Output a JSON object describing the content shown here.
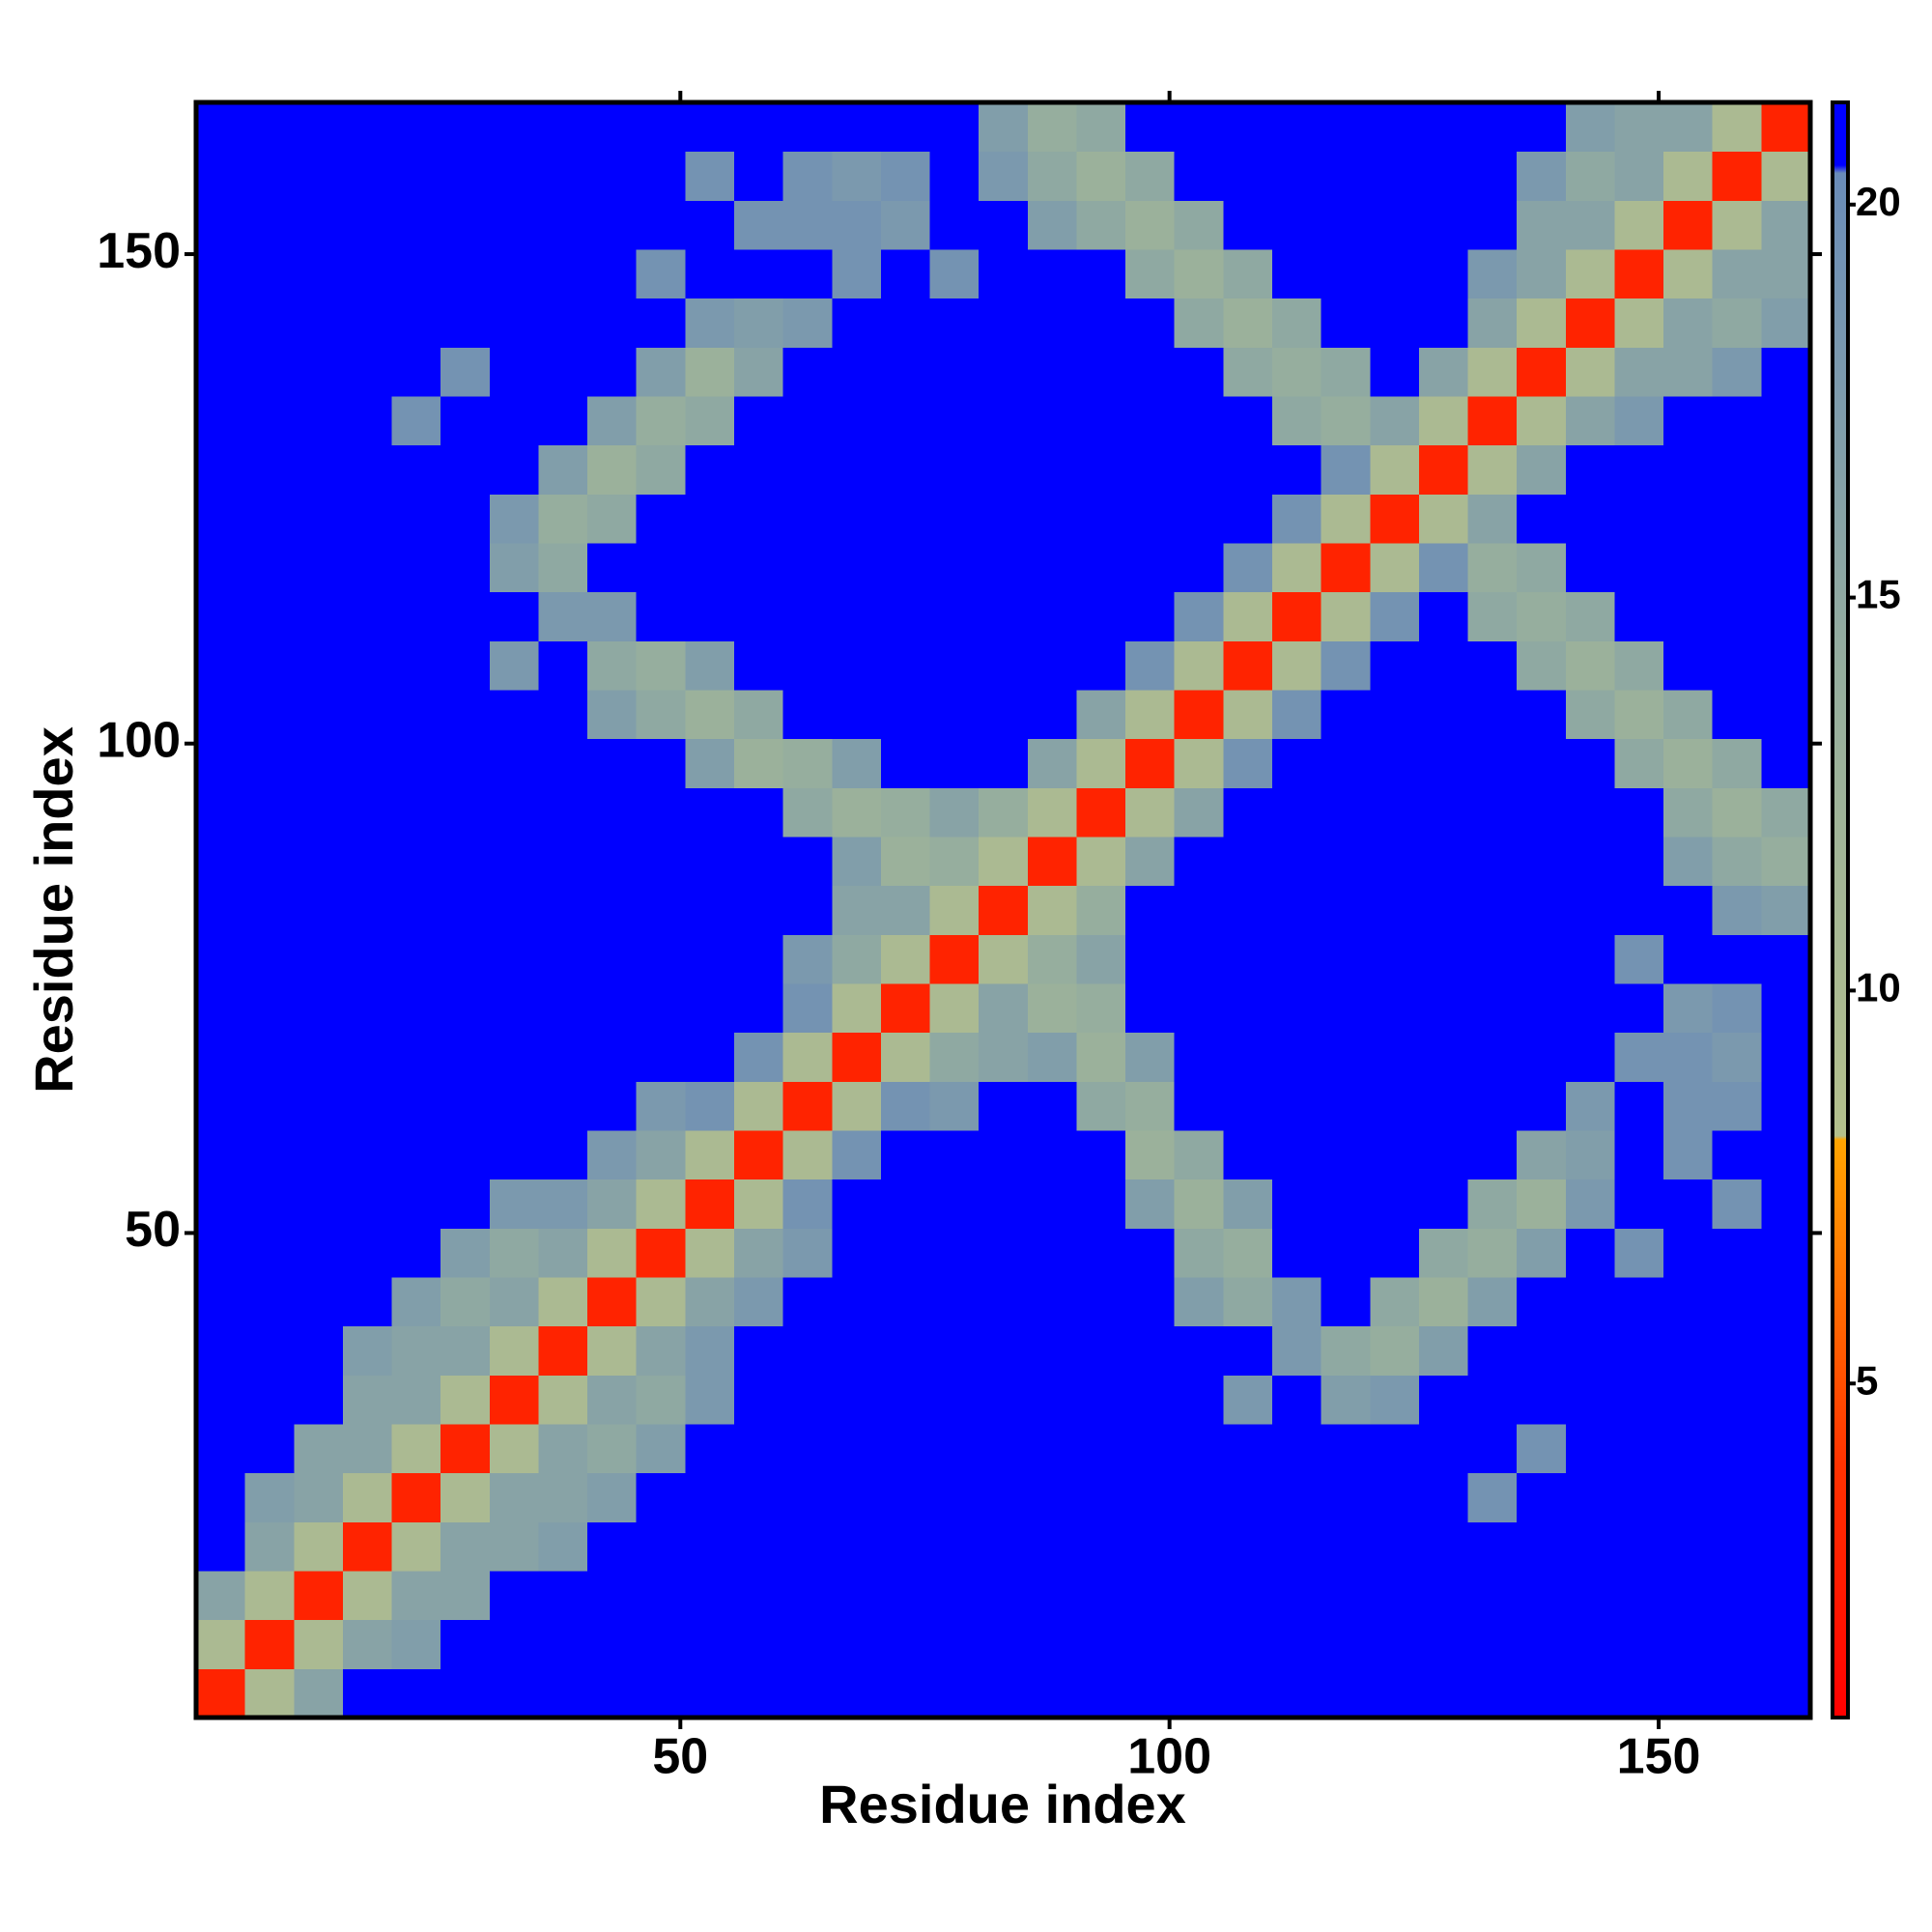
{
  "chart_data": {
    "type": "heatmap",
    "xlabel": "Residue index",
    "ylabel": "Residue index",
    "xlim": [
      0.5,
      165.5
    ],
    "ylim": [
      0.5,
      165.5
    ],
    "xticks": [
      50,
      100,
      150
    ],
    "yticks": [
      50,
      100,
      150
    ],
    "xbins": [
      0.5,
      5.5,
      10.5,
      15.5,
      20.5,
      25.5,
      30.5,
      35.5,
      40.5,
      45.5,
      50.5,
      55.5,
      60.5,
      65.5,
      70.5,
      75.5,
      80.5,
      85.5,
      90.5,
      95.5,
      100.5,
      105.5,
      110.5,
      115.5,
      120.5,
      125.5,
      130.5,
      135.5,
      140.5,
      145.5,
      150.5,
      155.5,
      160.5,
      165.5
    ],
    "ybins": [
      0.5,
      5.5,
      10.5,
      15.5,
      20.5,
      25.5,
      30.5,
      35.5,
      40.5,
      45.5,
      50.5,
      55.5,
      60.5,
      65.5,
      70.5,
      75.5,
      80.5,
      85.5,
      90.5,
      95.5,
      100.5,
      105.5,
      110.5,
      115.5,
      120.5,
      125.5,
      130.5,
      135.5,
      140.5,
      145.5,
      150.5,
      155.5,
      160.5,
      165.5
    ],
    "clim": [
      0.75,
      21.3
    ],
    "cticks": [
      5,
      10,
      15,
      20
    ],
    "colorscale": [
      {
        "value": 0.75,
        "color": "#ff0000"
      },
      {
        "value": 4,
        "color": "#ff3300"
      },
      {
        "value": 8.1,
        "color": "#ffa500"
      },
      {
        "value": 8.15,
        "color": "#b4c08c"
      },
      {
        "value": 14,
        "color": "#96ae9e"
      },
      {
        "value": 20.4,
        "color": "#6a8cb8"
      },
      {
        "value": 20.5,
        "color": "#0000ff"
      },
      {
        "value": 21.3,
        "color": "#0000ff"
      }
    ],
    "values": [
      [
        3,
        10,
        16,
        22,
        22,
        22,
        22,
        22,
        22,
        22,
        22,
        22,
        22,
        22,
        22,
        22,
        22,
        22,
        22,
        22,
        22,
        22,
        22,
        22,
        22,
        22,
        22,
        22,
        22,
        22,
        22,
        22,
        22
      ],
      [
        10,
        3,
        10,
        16,
        17,
        22,
        22,
        22,
        22,
        22,
        22,
        22,
        22,
        22,
        22,
        22,
        22,
        22,
        22,
        22,
        22,
        22,
        22,
        22,
        22,
        22,
        22,
        22,
        22,
        22,
        22,
        22,
        22
      ],
      [
        16,
        10,
        3,
        10,
        16,
        16,
        22,
        22,
        22,
        22,
        22,
        22,
        22,
        22,
        22,
        22,
        22,
        22,
        22,
        22,
        22,
        22,
        22,
        22,
        22,
        22,
        22,
        22,
        22,
        22,
        22,
        22,
        22
      ],
      [
        22,
        16,
        10,
        3,
        10,
        16,
        16,
        17,
        22,
        22,
        22,
        22,
        22,
        22,
        22,
        22,
        22,
        22,
        22,
        22,
        22,
        22,
        22,
        22,
        22,
        22,
        22,
        22,
        22,
        22,
        22,
        22,
        22
      ],
      [
        22,
        17,
        16,
        10,
        3,
        10,
        16,
        16,
        17,
        22,
        22,
        22,
        22,
        22,
        22,
        22,
        22,
        22,
        22,
        22,
        22,
        22,
        22,
        22,
        22,
        22,
        19,
        22,
        22,
        22,
        22,
        22,
        22
      ],
      [
        22,
        22,
        16,
        16,
        10,
        3,
        10,
        16,
        15,
        17,
        22,
        22,
        22,
        22,
        22,
        22,
        22,
        22,
        22,
        22,
        22,
        22,
        22,
        22,
        22,
        22,
        22,
        19,
        22,
        22,
        22,
        22,
        22
      ],
      [
        22,
        22,
        22,
        16,
        16,
        10,
        3,
        10,
        16,
        15,
        18,
        22,
        22,
        22,
        22,
        22,
        22,
        22,
        22,
        22,
        22,
        18,
        22,
        17,
        18,
        22,
        22,
        22,
        22,
        22,
        22,
        22,
        22
      ],
      [
        22,
        22,
        22,
        17,
        16,
        16,
        10,
        3,
        10,
        16,
        18,
        22,
        22,
        22,
        22,
        22,
        22,
        22,
        22,
        22,
        22,
        22,
        18,
        15,
        14,
        17,
        22,
        22,
        22,
        22,
        22,
        22,
        22
      ],
      [
        22,
        22,
        22,
        22,
        17,
        15,
        16,
        10,
        3,
        10,
        16,
        18,
        22,
        22,
        22,
        22,
        22,
        22,
        22,
        22,
        17,
        15,
        18,
        22,
        15,
        13,
        17,
        22,
        22,
        22,
        22,
        22,
        22
      ],
      [
        22,
        22,
        22,
        22,
        22,
        17,
        15,
        16,
        10,
        3,
        10,
        16,
        18,
        22,
        22,
        22,
        22,
        22,
        22,
        22,
        15,
        14,
        22,
        22,
        22,
        15,
        14,
        17,
        22,
        19,
        22,
        22,
        22
      ],
      [
        22,
        22,
        22,
        22,
        22,
        22,
        18,
        18,
        16,
        10,
        3,
        10,
        19,
        22,
        22,
        22,
        22,
        22,
        22,
        17,
        13,
        17,
        22,
        22,
        22,
        22,
        15,
        13,
        18,
        22,
        22,
        19,
        22
      ],
      [
        22,
        22,
        22,
        22,
        22,
        22,
        22,
        22,
        18,
        16,
        10,
        3,
        10,
        19,
        22,
        22,
        22,
        22,
        22,
        13,
        15,
        22,
        22,
        22,
        22,
        22,
        22,
        16,
        17,
        22,
        19,
        22,
        22
      ],
      [
        22,
        22,
        22,
        22,
        22,
        22,
        22,
        22,
        22,
        18,
        19,
        10,
        3,
        10,
        19,
        18,
        22,
        22,
        15,
        14,
        22,
        22,
        22,
        22,
        22,
        22,
        22,
        22,
        18,
        22,
        19,
        19,
        22
      ],
      [
        22,
        22,
        22,
        22,
        22,
        22,
        22,
        22,
        22,
        22,
        22,
        19,
        10,
        3,
        10,
        15,
        16,
        17,
        13,
        17,
        22,
        22,
        22,
        22,
        22,
        22,
        22,
        22,
        22,
        19,
        19,
        18,
        22
      ],
      [
        22,
        22,
        22,
        22,
        22,
        22,
        22,
        22,
        22,
        22,
        22,
        22,
        19,
        10,
        3,
        10,
        16,
        13,
        14,
        22,
        22,
        22,
        22,
        22,
        22,
        22,
        22,
        22,
        22,
        22,
        18,
        19,
        22
      ],
      [
        22,
        22,
        22,
        22,
        22,
        22,
        22,
        22,
        22,
        22,
        22,
        22,
        18,
        15,
        10,
        3,
        10,
        14,
        16,
        22,
        22,
        22,
        22,
        22,
        22,
        22,
        22,
        22,
        22,
        19,
        22,
        22,
        22
      ],
      [
        22,
        22,
        22,
        22,
        22,
        22,
        22,
        22,
        22,
        22,
        22,
        22,
        22,
        16,
        16,
        10,
        3,
        10,
        14,
        22,
        22,
        22,
        22,
        22,
        22,
        22,
        22,
        22,
        22,
        22,
        22,
        18,
        17
      ],
      [
        22,
        22,
        22,
        22,
        22,
        22,
        22,
        22,
        22,
        22,
        22,
        22,
        22,
        17,
        13,
        14,
        10,
        3,
        10,
        16,
        22,
        22,
        22,
        22,
        22,
        22,
        22,
        22,
        22,
        22,
        17,
        15,
        14
      ],
      [
        22,
        22,
        22,
        22,
        22,
        22,
        22,
        22,
        22,
        22,
        22,
        22,
        15,
        13,
        14,
        16,
        14,
        10,
        3,
        10,
        16,
        22,
        22,
        22,
        22,
        22,
        22,
        22,
        22,
        22,
        15,
        13,
        15
      ],
      [
        22,
        22,
        22,
        22,
        22,
        22,
        22,
        22,
        22,
        22,
        17,
        13,
        14,
        17,
        22,
        22,
        22,
        16,
        10,
        3,
        10,
        19,
        22,
        22,
        22,
        22,
        22,
        22,
        22,
        15,
        13,
        15,
        22
      ],
      [
        22,
        22,
        22,
        22,
        22,
        22,
        22,
        22,
        17,
        15,
        13,
        15,
        22,
        22,
        22,
        22,
        22,
        22,
        16,
        10,
        3,
        10,
        19,
        22,
        22,
        22,
        22,
        22,
        15,
        13,
        15,
        22,
        22
      ],
      [
        22,
        22,
        22,
        22,
        22,
        22,
        18,
        22,
        15,
        14,
        17,
        22,
        22,
        22,
        22,
        22,
        22,
        22,
        22,
        19,
        10,
        3,
        10,
        19,
        22,
        22,
        22,
        15,
        13,
        15,
        22,
        22,
        22
      ],
      [
        22,
        22,
        22,
        22,
        22,
        22,
        22,
        18,
        18,
        22,
        22,
        22,
        22,
        22,
        22,
        22,
        22,
        22,
        22,
        22,
        19,
        10,
        3,
        10,
        19,
        22,
        15,
        14,
        15,
        22,
        22,
        22,
        22
      ],
      [
        22,
        22,
        22,
        22,
        22,
        22,
        17,
        15,
        22,
        22,
        22,
        22,
        22,
        22,
        22,
        22,
        22,
        22,
        22,
        22,
        22,
        19,
        10,
        3,
        10,
        19,
        14,
        15,
        22,
        22,
        22,
        22,
        22
      ],
      [
        22,
        22,
        22,
        22,
        22,
        22,
        18,
        14,
        15,
        22,
        22,
        22,
        22,
        22,
        22,
        22,
        22,
        22,
        22,
        22,
        22,
        22,
        19,
        10,
        3,
        10,
        16,
        22,
        22,
        22,
        22,
        22,
        22
      ],
      [
        22,
        22,
        22,
        22,
        22,
        22,
        22,
        17,
        13,
        15,
        22,
        22,
        22,
        22,
        22,
        22,
        22,
        22,
        22,
        22,
        22,
        22,
        22,
        19,
        10,
        3,
        10,
        16,
        22,
        22,
        22,
        22,
        22
      ],
      [
        22,
        22,
        22,
        22,
        19,
        22,
        22,
        22,
        17,
        14,
        15,
        22,
        22,
        22,
        22,
        22,
        22,
        22,
        22,
        22,
        22,
        22,
        15,
        14,
        16,
        10,
        3,
        10,
        16,
        18,
        22,
        22,
        22
      ],
      [
        22,
        22,
        22,
        22,
        22,
        19,
        22,
        22,
        22,
        17,
        13,
        16,
        22,
        22,
        22,
        22,
        22,
        22,
        22,
        22,
        22,
        15,
        14,
        15,
        22,
        16,
        10,
        3,
        10,
        16,
        16,
        18,
        22
      ],
      [
        22,
        22,
        22,
        22,
        22,
        22,
        22,
        22,
        22,
        22,
        18,
        17,
        18,
        22,
        22,
        22,
        22,
        22,
        22,
        22,
        15,
        13,
        15,
        22,
        22,
        22,
        16,
        10,
        3,
        10,
        16,
        15,
        17
      ],
      [
        22,
        22,
        22,
        22,
        22,
        22,
        22,
        22,
        22,
        19,
        22,
        22,
        22,
        19,
        22,
        19,
        22,
        22,
        22,
        15,
        13,
        15,
        22,
        22,
        22,
        22,
        18,
        16,
        10,
        3,
        10,
        16,
        16
      ],
      [
        22,
        22,
        22,
        22,
        22,
        22,
        22,
        22,
        22,
        22,
        22,
        19,
        19,
        19,
        18,
        22,
        22,
        17,
        15,
        13,
        15,
        22,
        22,
        22,
        22,
        22,
        22,
        16,
        16,
        10,
        3,
        10,
        16
      ],
      [
        22,
        22,
        22,
        22,
        22,
        22,
        22,
        22,
        22,
        22,
        19,
        22,
        19,
        18,
        19,
        22,
        18,
        15,
        13,
        15,
        22,
        22,
        22,
        22,
        22,
        22,
        22,
        18,
        15,
        16,
        10,
        3,
        10
      ],
      [
        22,
        22,
        22,
        22,
        22,
        22,
        22,
        22,
        22,
        22,
        22,
        22,
        22,
        22,
        22,
        22,
        17,
        14,
        15,
        22,
        22,
        22,
        22,
        22,
        22,
        22,
        22,
        22,
        17,
        16,
        16,
        10,
        3
      ]
    ]
  }
}
